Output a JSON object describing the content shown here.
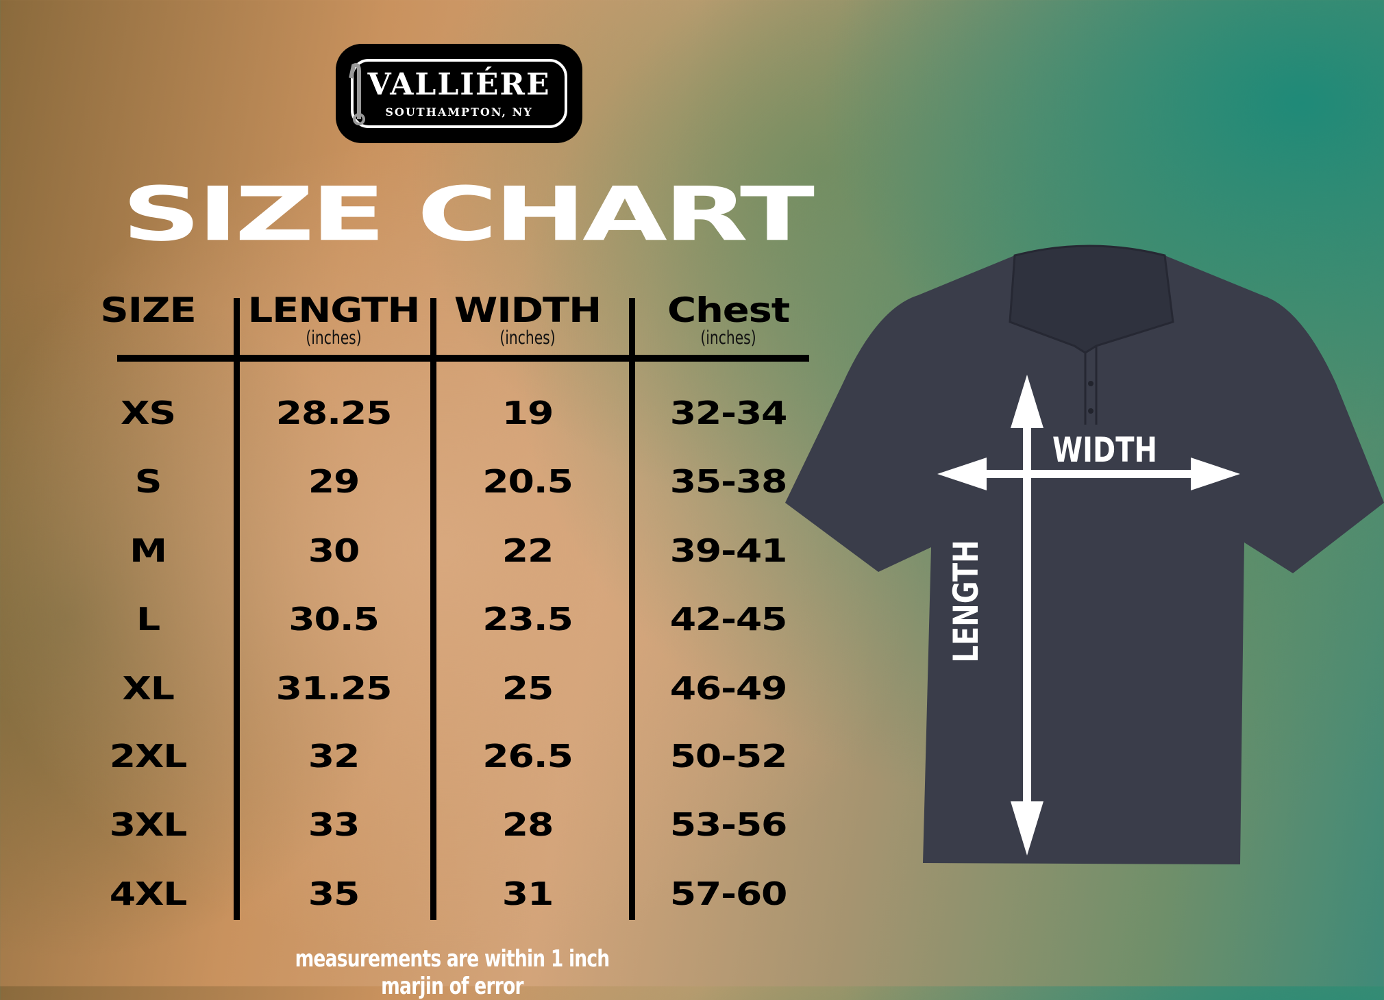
{
  "logo": {
    "brand": "VALLIÉRE",
    "location": "SOUTHAMPTON, NY"
  },
  "title": "SIZE CHART",
  "table": {
    "columns": [
      {
        "label": "SIZE",
        "unit": ""
      },
      {
        "label": "LENGTH",
        "unit": "(inches)"
      },
      {
        "label": "WIDTH",
        "unit": "(inches)"
      },
      {
        "label": "Chest",
        "unit": "(inches)"
      }
    ],
    "rows": [
      [
        "XS",
        "28.25",
        "19",
        "32-34"
      ],
      [
        "S",
        "29",
        "20.5",
        "35-38"
      ],
      [
        "M",
        "30",
        "22",
        "39-41"
      ],
      [
        "L",
        "30.5",
        "23.5",
        "42-45"
      ],
      [
        "XL",
        "31.25",
        "25",
        "46-49"
      ],
      [
        "2XL",
        "32",
        "26.5",
        "50-52"
      ],
      [
        "3XL",
        "33",
        "28",
        "53-56"
      ],
      [
        "4XL",
        "35",
        "31",
        "57-60"
      ]
    ]
  },
  "footnote": "measurements are within 1 inch marjin of error",
  "diagram": {
    "width_label": "WIDTH",
    "length_label": "LENGTH",
    "shirt_color": "#3a3d4a"
  }
}
